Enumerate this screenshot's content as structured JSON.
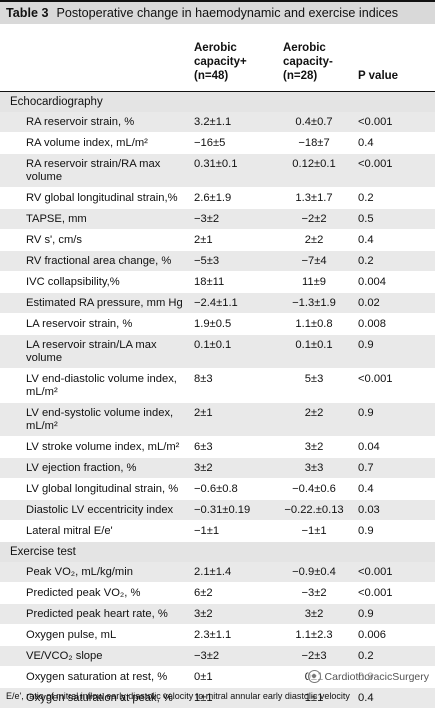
{
  "title": {
    "number": "Table 3",
    "text": "Postoperative change in haemodynamic and exercise indices"
  },
  "columns": {
    "col1": "Aerobic capacity+ (n=48)",
    "col2": "Aerobic capacity- (n=28)",
    "col3": "P value"
  },
  "sections": [
    {
      "label": "Echocardiography",
      "rows": [
        {
          "label": "RA reservoir strain, %",
          "c1": "3.2±1.1",
          "c2": "0.4±0.7",
          "c3": "<0.001"
        },
        {
          "label": "RA volume index, mL/m²",
          "c1": "−16±5",
          "c2": "−18±7",
          "c3": "0.4"
        },
        {
          "label": "RA reservoir strain/RA max volume",
          "c1": "0.31±0.1",
          "c2": "0.12±0.1",
          "c3": "<0.001"
        },
        {
          "label": "RV global longitudinal strain,%",
          "c1": "2.6±1.9",
          "c2": "1.3±1.7",
          "c3": "0.2"
        },
        {
          "label": "TAPSE, mm",
          "c1": "−3±2",
          "c2": "−2±2",
          "c3": "0.5"
        },
        {
          "label": "RV s', cm/s",
          "c1": "2±1",
          "c2": "2±2",
          "c3": "0.4"
        },
        {
          "label": "RV fractional area change, %",
          "c1": "−5±3",
          "c2": "−7±4",
          "c3": "0.2"
        },
        {
          "label": "IVC collapsibility,%",
          "c1": "18±11",
          "c2": "11±9",
          "c3": "0.004"
        },
        {
          "label": "Estimated RA pressure, mm Hg",
          "c1": "−2.4±1.1",
          "c2": "−1.3±1.9",
          "c3": "0.02"
        },
        {
          "label": "LA reservoir strain, %",
          "c1": "1.9±0.5",
          "c2": "1.1±0.8",
          "c3": "0.008"
        },
        {
          "label": "LA reservoir strain/LA max volume",
          "c1": "0.1±0.1",
          "c2": "0.1±0.1",
          "c3": "0.9"
        },
        {
          "label": "LV end-diastolic volume index, mL/m²",
          "c1": "8±3",
          "c2": "5±3",
          "c3": "<0.001"
        },
        {
          "label": "LV end-systolic volume index, mL/m²",
          "c1": "2±1",
          "c2": "2±2",
          "c3": "0.9"
        },
        {
          "label": "LV stroke volume index, mL/m²",
          "c1": "6±3",
          "c2": "3±2",
          "c3": "0.04"
        },
        {
          "label": "LV ejection fraction, %",
          "c1": "3±2",
          "c2": "3±3",
          "c3": "0.7"
        },
        {
          "label": "LV global longitudinal strain, %",
          "c1": "−0.6±0.8",
          "c2": "−0.4±0.6",
          "c3": "0.4"
        },
        {
          "label": "Diastolic LV eccentricity index",
          "c1": "−0.31±0.19",
          "c2": "−0.22.±0.13",
          "c3": "0.03"
        },
        {
          "label": "Lateral mitral E/e'",
          "c1": "−1±1",
          "c2": "−1±1",
          "c3": "0.9"
        }
      ]
    },
    {
      "label": "Exercise test",
      "rows": [
        {
          "label": "Peak VO₂, mL/kg/min",
          "c1": "2.1±1.4",
          "c2": "−0.9±0.4",
          "c3": "<0.001"
        },
        {
          "label": "Predicted peak VO₂, %",
          "c1": "6±2",
          "c2": "−3±2",
          "c3": "<0.001"
        },
        {
          "label": "Predicted peak heart rate, %",
          "c1": "3±2",
          "c2": "3±2",
          "c3": "0.9"
        },
        {
          "label": "Oxygen pulse, mL",
          "c1": "2.3±1.1",
          "c2": "1.1±2.3",
          "c3": "0.006"
        },
        {
          "label": "VE/VCO₂ slope",
          "c1": "−3±2",
          "c2": "−2±3",
          "c3": "0.2"
        },
        {
          "label": "Oxygen saturation at rest, %",
          "c1": "0±1",
          "c2": "0±1",
          "c3": "0.9"
        },
        {
          "label": "Oxygen saturation at peak, %",
          "c1": "1±1",
          "c2": "1±1",
          "c3": "0.4"
        }
      ]
    }
  ],
  "footer": "E/e', ratio of mitral inflow early diastolic velocity to mitral annular early diastolic velocity",
  "watermark": "CardiothoracicSurgery"
}
